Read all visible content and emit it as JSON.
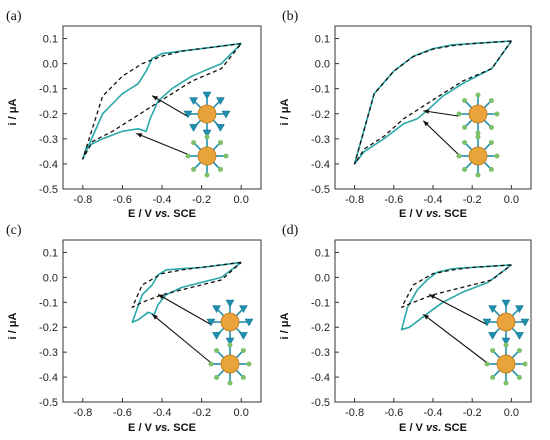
{
  "figure": {
    "colors": {
      "solid": "#2aa8a8",
      "dashed": "#111111",
      "axis": "#333333",
      "sphere": "#e8a33a",
      "ligand": "#1f8fb0"
    }
  },
  "chart_data": [
    {
      "type": "line",
      "panel_label": "(a)",
      "xlabel_main": "E / V ",
      "xlabel_italic": "vs.",
      "xlabel_tail": " SCE",
      "ylabel": "i / μA",
      "xlim": [
        -0.9,
        0.1
      ],
      "ylim": [
        -0.5,
        0.15
      ],
      "x_ticks": [
        "-0.8",
        "-0.6",
        "-0.4",
        "-0.2",
        "0.0"
      ],
      "y_ticks": [
        "0.1",
        "0.0",
        "-0.1",
        "-0.2",
        "-0.3",
        "-0.4",
        "-0.5"
      ],
      "grid": false,
      "series": [
        {
          "style": "solid",
          "points": [
            [
              0.0,
              0.08
            ],
            [
              -0.1,
              0.07
            ],
            [
              -0.2,
              0.06
            ],
            [
              -0.3,
              0.05
            ],
            [
              -0.4,
              0.04
            ],
            [
              -0.45,
              0.02
            ],
            [
              -0.48,
              -0.03
            ],
            [
              -0.52,
              -0.08
            ],
            [
              -0.6,
              -0.12
            ],
            [
              -0.7,
              -0.2
            ],
            [
              -0.8,
              -0.38
            ],
            [
              -0.78,
              -0.33
            ],
            [
              -0.7,
              -0.3
            ],
            [
              -0.6,
              -0.27
            ],
            [
              -0.52,
              -0.26
            ],
            [
              -0.48,
              -0.27
            ],
            [
              -0.46,
              -0.22
            ],
            [
              -0.42,
              -0.15
            ],
            [
              -0.35,
              -0.1
            ],
            [
              -0.25,
              -0.05
            ],
            [
              -0.1,
              0.0
            ],
            [
              0.0,
              0.08
            ]
          ]
        },
        {
          "style": "dashed",
          "points": [
            [
              0.0,
              0.08
            ],
            [
              -0.1,
              0.07
            ],
            [
              -0.2,
              0.06
            ],
            [
              -0.3,
              0.05
            ],
            [
              -0.4,
              0.03
            ],
            [
              -0.5,
              0.0
            ],
            [
              -0.6,
              -0.05
            ],
            [
              -0.7,
              -0.13
            ],
            [
              -0.8,
              -0.38
            ],
            [
              -0.75,
              -0.31
            ],
            [
              -0.65,
              -0.27
            ],
            [
              -0.55,
              -0.22
            ],
            [
              -0.45,
              -0.17
            ],
            [
              -0.35,
              -0.12
            ],
            [
              -0.25,
              -0.07
            ],
            [
              -0.1,
              -0.02
            ],
            [
              0.0,
              0.08
            ]
          ]
        }
      ]
    },
    {
      "type": "line",
      "panel_label": "(b)",
      "xlabel_main": "E / V ",
      "xlabel_italic": "vs.",
      "xlabel_tail": " SCE",
      "ylabel": "i / μA",
      "xlim": [
        -0.9,
        0.1
      ],
      "ylim": [
        -0.5,
        0.15
      ],
      "x_ticks": [
        "-0.8",
        "-0.6",
        "-0.4",
        "-0.2",
        "0.0"
      ],
      "y_ticks": [
        "0.1",
        "0.0",
        "-0.1",
        "-0.2",
        "-0.3",
        "-0.4",
        "-0.5"
      ],
      "grid": false,
      "series": [
        {
          "style": "solid",
          "points": [
            [
              0.0,
              0.09
            ],
            [
              -0.1,
              0.085
            ],
            [
              -0.2,
              0.08
            ],
            [
              -0.3,
              0.075
            ],
            [
              -0.4,
              0.06
            ],
            [
              -0.5,
              0.03
            ],
            [
              -0.6,
              -0.03
            ],
            [
              -0.7,
              -0.12
            ],
            [
              -0.8,
              -0.4
            ],
            [
              -0.75,
              -0.35
            ],
            [
              -0.65,
              -0.3
            ],
            [
              -0.55,
              -0.24
            ],
            [
              -0.48,
              -0.22
            ],
            [
              -0.42,
              -0.18
            ],
            [
              -0.35,
              -0.13
            ],
            [
              -0.25,
              -0.08
            ],
            [
              -0.1,
              -0.02
            ],
            [
              0.0,
              0.09
            ]
          ]
        },
        {
          "style": "dashed",
          "points": [
            [
              0.0,
              0.09
            ],
            [
              -0.1,
              0.085
            ],
            [
              -0.2,
              0.08
            ],
            [
              -0.3,
              0.072
            ],
            [
              -0.4,
              0.058
            ],
            [
              -0.5,
              0.028
            ],
            [
              -0.6,
              -0.03
            ],
            [
              -0.7,
              -0.12
            ],
            [
              -0.8,
              -0.4
            ],
            [
              -0.75,
              -0.34
            ],
            [
              -0.65,
              -0.29
            ],
            [
              -0.55,
              -0.22
            ],
            [
              -0.45,
              -0.17
            ],
            [
              -0.35,
              -0.12
            ],
            [
              -0.25,
              -0.07
            ],
            [
              -0.1,
              -0.02
            ],
            [
              0.0,
              0.09
            ]
          ]
        }
      ]
    },
    {
      "type": "line",
      "panel_label": "(c)",
      "xlabel_main": "E / V ",
      "xlabel_italic": "vs.",
      "xlabel_tail": " SCE",
      "ylabel": "i / μA",
      "xlim": [
        -0.9,
        0.1
      ],
      "ylim": [
        -0.5,
        0.15
      ],
      "x_ticks": [
        "-0.8",
        "-0.6",
        "-0.4",
        "-0.2",
        "0.0"
      ],
      "y_ticks": [
        "0.1",
        "0.0",
        "-0.1",
        "-0.2",
        "-0.3",
        "-0.4",
        "-0.5"
      ],
      "grid": false,
      "series": [
        {
          "style": "solid",
          "points": [
            [
              0.0,
              0.06
            ],
            [
              -0.1,
              0.05
            ],
            [
              -0.2,
              0.04
            ],
            [
              -0.3,
              0.035
            ],
            [
              -0.38,
              0.03
            ],
            [
              -0.42,
              0.01
            ],
            [
              -0.45,
              -0.03
            ],
            [
              -0.5,
              -0.07
            ],
            [
              -0.55,
              -0.18
            ],
            [
              -0.52,
              -0.17
            ],
            [
              -0.47,
              -0.14
            ],
            [
              -0.44,
              -0.15
            ],
            [
              -0.42,
              -0.11
            ],
            [
              -0.38,
              -0.07
            ],
            [
              -0.3,
              -0.04
            ],
            [
              -0.2,
              -0.02
            ],
            [
              -0.1,
              0.0
            ],
            [
              0.0,
              0.06
            ]
          ]
        },
        {
          "style": "dashed",
          "points": [
            [
              0.0,
              0.06
            ],
            [
              -0.1,
              0.05
            ],
            [
              -0.2,
              0.04
            ],
            [
              -0.3,
              0.03
            ],
            [
              -0.4,
              0.015
            ],
            [
              -0.5,
              -0.03
            ],
            [
              -0.55,
              -0.12
            ],
            [
              -0.5,
              -0.1
            ],
            [
              -0.4,
              -0.07
            ],
            [
              -0.3,
              -0.05
            ],
            [
              -0.2,
              -0.03
            ],
            [
              -0.1,
              -0.01
            ],
            [
              0.0,
              0.06
            ]
          ]
        }
      ]
    },
    {
      "type": "line",
      "panel_label": "(d)",
      "xlabel_main": "E / V ",
      "xlabel_italic": "vs.",
      "xlabel_tail": " SCE",
      "ylabel": "i / μA",
      "xlim": [
        -0.9,
        0.1
      ],
      "ylim": [
        -0.5,
        0.15
      ],
      "x_ticks": [
        "-0.8",
        "-0.6",
        "-0.4",
        "-0.2",
        "0.0"
      ],
      "y_ticks": [
        "0.1",
        "0.0",
        "-0.1",
        "-0.2",
        "-0.3",
        "-0.4",
        "-0.5"
      ],
      "grid": false,
      "series": [
        {
          "style": "solid",
          "points": [
            [
              0.0,
              0.05
            ],
            [
              -0.1,
              0.045
            ],
            [
              -0.2,
              0.04
            ],
            [
              -0.3,
              0.035
            ],
            [
              -0.38,
              0.02
            ],
            [
              -0.43,
              -0.01
            ],
            [
              -0.48,
              -0.05
            ],
            [
              -0.53,
              -0.12
            ],
            [
              -0.56,
              -0.21
            ],
            [
              -0.52,
              -0.2
            ],
            [
              -0.47,
              -0.17
            ],
            [
              -0.42,
              -0.14
            ],
            [
              -0.35,
              -0.1
            ],
            [
              -0.25,
              -0.06
            ],
            [
              -0.12,
              -0.02
            ],
            [
              0.0,
              0.05
            ]
          ]
        },
        {
          "style": "dashed",
          "points": [
            [
              0.0,
              0.05
            ],
            [
              -0.1,
              0.045
            ],
            [
              -0.2,
              0.04
            ],
            [
              -0.3,
              0.03
            ],
            [
              -0.4,
              0.015
            ],
            [
              -0.5,
              -0.03
            ],
            [
              -0.56,
              -0.12
            ],
            [
              -0.5,
              -0.1
            ],
            [
              -0.4,
              -0.07
            ],
            [
              -0.3,
              -0.05
            ],
            [
              -0.2,
              -0.03
            ],
            [
              -0.1,
              -0.01
            ],
            [
              0.0,
              0.05
            ]
          ]
        }
      ]
    }
  ]
}
